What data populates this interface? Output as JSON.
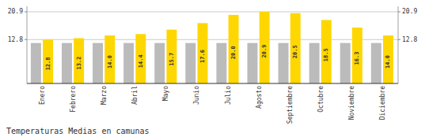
{
  "chart_data": {
    "type": "bar",
    "title": "Temperaturas Medias en camunas",
    "categories": [
      "Enero",
      "Febrero",
      "Marzo",
      "Abril",
      "Mayo",
      "Junio",
      "Julio",
      "Agosto",
      "Septiembre",
      "Octubre",
      "Noviembre",
      "Diciembre"
    ],
    "series": [
      {
        "color": "#BBBBBB",
        "values": [
          11.8,
          11.8,
          11.8,
          11.8,
          11.8,
          11.8,
          11.8,
          11.8,
          11.8,
          11.8,
          11.8,
          11.8
        ]
      },
      {
        "color": "#FFD700",
        "values": [
          12.8,
          13.2,
          14.0,
          14.4,
          15.7,
          17.6,
          20.0,
          20.9,
          20.5,
          18.5,
          16.3,
          14.0
        ],
        "value_labels": [
          "12.8",
          "13.2",
          "14.0",
          "14.4",
          "15.7",
          "17.6",
          "20.0",
          "20.9",
          "20.5",
          "18.5",
          "16.3",
          "14.0"
        ],
        "data_labels": true
      }
    ],
    "ylim": [
      0,
      22.5
    ],
    "yticks": [
      12.8,
      20.9
    ],
    "y2lim": [
      0,
      22.5
    ],
    "y2ticks": [
      12.8,
      20.9
    ],
    "grid": true
  }
}
